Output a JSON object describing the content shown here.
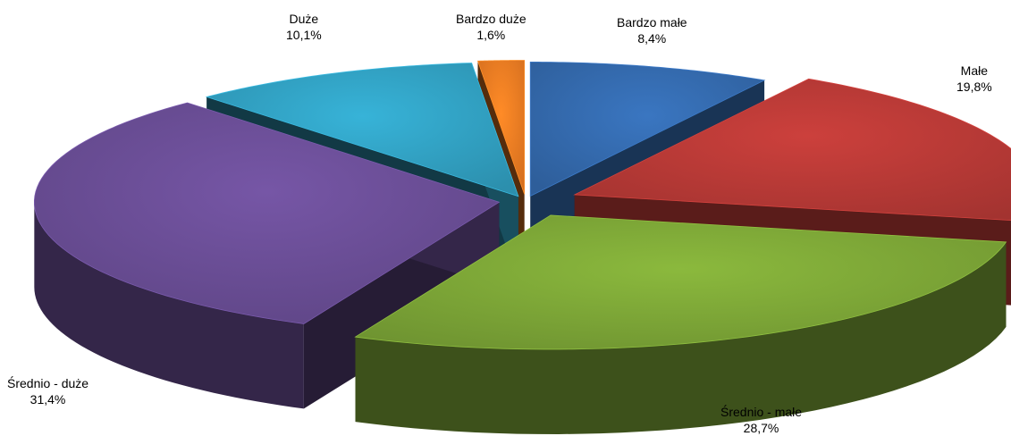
{
  "chart_data": {
    "type": "pie",
    "title": "",
    "slices": [
      {
        "label": "Bardzo małe",
        "value": 8.4,
        "value_label": "8,4%",
        "color": "#2E5E9A"
      },
      {
        "label": "Małe",
        "value": 19.8,
        "value_label": "19,8%",
        "color": "#A33330"
      },
      {
        "label": "Średnio - małe",
        "value": 28.7,
        "value_label": "28,7%",
        "color": "#6F9431"
      },
      {
        "label": "Średnio - duże",
        "value": 31.4,
        "value_label": "31,4%",
        "color": "#5E4585"
      },
      {
        "label": "Duże",
        "value": 10.1,
        "value_label": "10,1%",
        "color": "#2C8FAD"
      },
      {
        "label": "Bardzo duże",
        "value": 1.6,
        "value_label": "1,6%",
        "color": "#D56F1F"
      }
    ],
    "style": "3d-exploded",
    "legend": "none"
  }
}
